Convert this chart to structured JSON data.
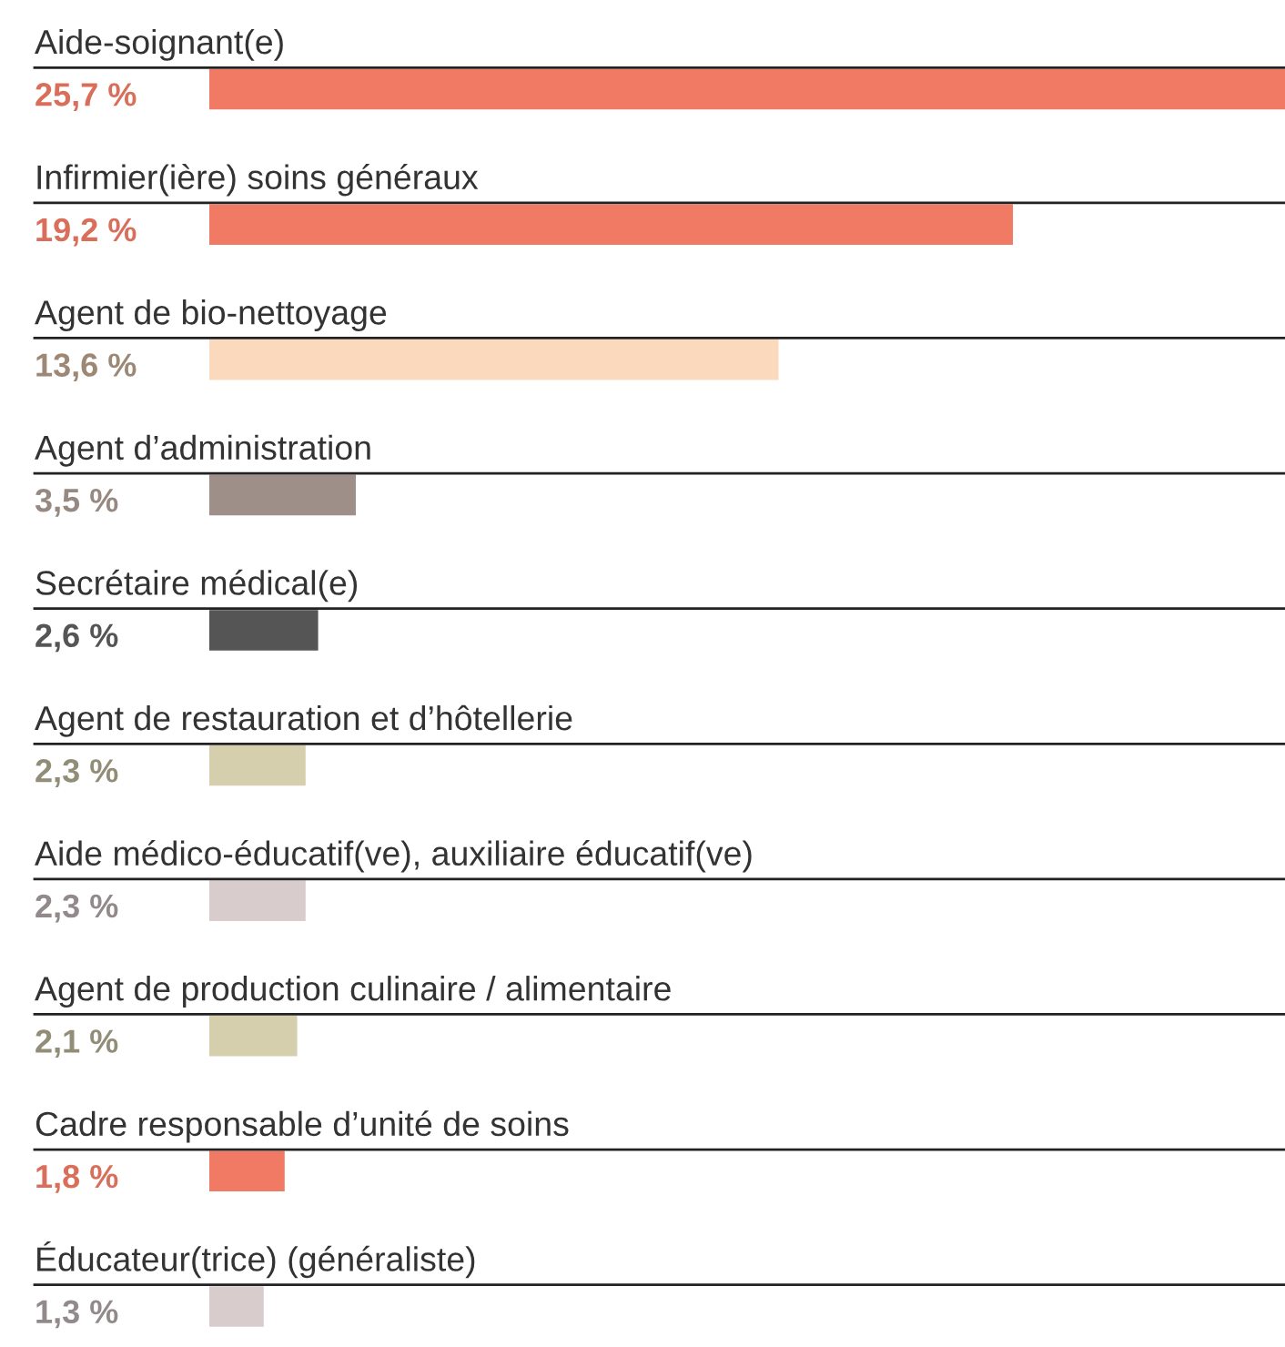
{
  "chart_data": {
    "type": "bar",
    "orientation": "horizontal",
    "categories": [
      "Aide-soignant(e)",
      "Infirmier(ière) soins généraux",
      "Agent de bio-nettoyage",
      "Agent d’administration",
      "Secrétaire médical(e)",
      "Agent de restauration et d’hôtellerie",
      "Aide médico-éducatif(ve), auxiliaire éducatif(ve)",
      "Agent de production culinaire / alimentaire",
      "Cadre responsable d’unité de soins",
      "Éducateur(trice) (généraliste)"
    ],
    "values": [
      25.7,
      19.2,
      13.6,
      3.5,
      2.6,
      2.3,
      2.3,
      2.1,
      1.8,
      1.3
    ],
    "value_labels": [
      "25,7 %",
      "19,2 %",
      "13,6 %",
      "3,5 %",
      "2,6 %",
      "2,3 %",
      "2,3 %",
      "2,1 %",
      "1,8 %",
      "1,3 %"
    ],
    "colors": [
      "#f07a63",
      "#f07a63",
      "#fbd9bd",
      "#9e8f88",
      "#555555",
      "#d6cfae",
      "#d8cccc",
      "#d6cfae",
      "#f07a63",
      "#d8cccc"
    ],
    "legend": false
  }
}
